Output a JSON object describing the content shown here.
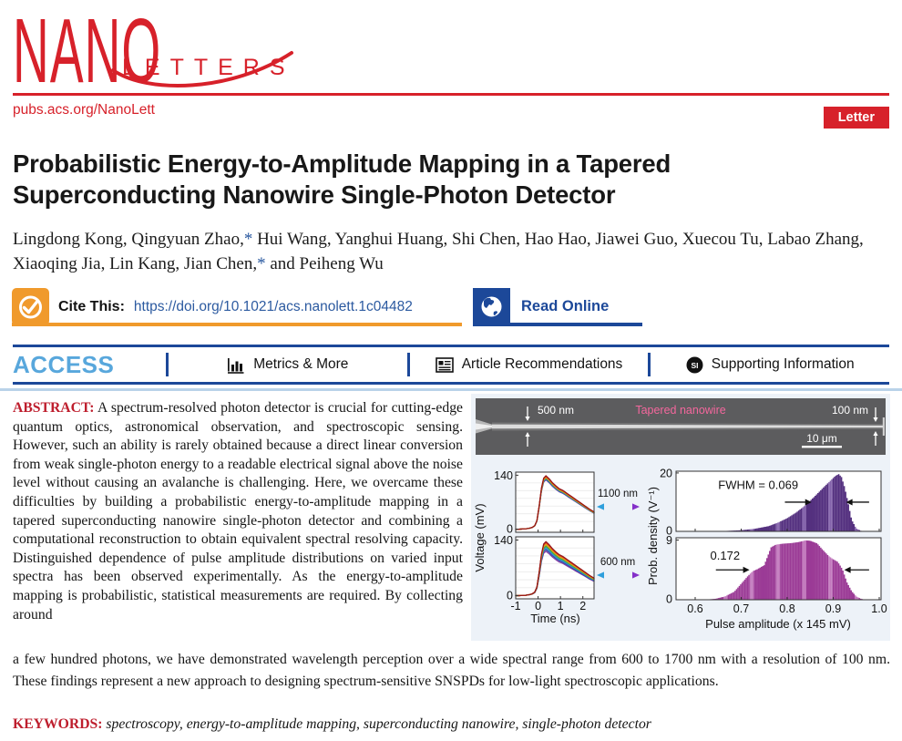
{
  "journal": {
    "logo_main": "NANO",
    "logo_sub": "LETTERS",
    "site": "pubs.acs.org/NanoLett",
    "badge": "Letter"
  },
  "article": {
    "title": "Probabilistic Energy-to-Amplitude Mapping in a Tapered Superconducting Nanowire Single-Photon Detector",
    "authors_segments": [
      {
        "t": "Lingdong Kong, Qingyuan Zhao,"
      },
      {
        "t": "*",
        "star": true
      },
      {
        "t": " Hui Wang, Yanghui Huang, Shi Chen, Hao Hao, Jiawei Guo, Xuecou Tu, Labao Zhang, Xiaoqing Jia, Lin Kang, Jian Chen,"
      },
      {
        "t": "*",
        "star": true
      },
      {
        "t": " and Peiheng Wu"
      }
    ],
    "cite_label": "Cite This:",
    "doi": "https://doi.org/10.1021/acs.nanolett.1c04482",
    "read_online": "Read Online"
  },
  "access_bar": {
    "access": "ACCESS",
    "items": [
      {
        "label": "Metrics & More"
      },
      {
        "label": "Article Recommendations"
      },
      {
        "label": "Supporting Information"
      }
    ]
  },
  "abstract": {
    "label": "ABSTRACT:",
    "column_text": "A spectrum-resolved photon detector is crucial for cutting-edge quantum optics, astronomical observation, and spectroscopic sensing. However, such an ability is rarely obtained because a direct linear conversion from weak single-photon energy to a readable electrical signal above the noise level without causing an avalanche is challenging. Here, we overcame these difficulties by building a probabilistic energy-to-amplitude mapping in a tapered superconducting nanowire single-photon detector and combining a computational reconstruction to obtain equivalent spectral resolving capacity. Distinguished dependence of pulse amplitude distributions on varied input spectra has been observed experimentally. As the energy-to-amplitude mapping is probabilistic, statistical measurements are required. By collecting around",
    "full_text": "a few hundred photons, we have demonstrated wavelength perception over a wide spectral range from 600 to 1700 nm with a resolution of 100 nm. These findings represent a new approach to designing spectrum-sensitive SNSPDs for low-light spectroscopic applications."
  },
  "keywords": {
    "label": "KEYWORDS:",
    "text": "spectroscopy, energy-to-amplitude mapping, superconducting nanowire, single-photon detector"
  },
  "figure": {
    "sem": {
      "label_left": "500 nm",
      "label_center": "Tapered nanowire",
      "label_right": "100 nm",
      "scalebar": "10 μm"
    },
    "arrow_labels": [
      "1100 nm",
      "600 nm"
    ]
  },
  "colors": {
    "brand_red": "#d7212a",
    "navy": "#1c4899",
    "access_blue": "#58a7dc",
    "orange": "#f09a2c",
    "link_blue": "#2c5aa0",
    "heading_red": "#be1e2d",
    "figure_bg": "#edf2f8",
    "sem_bg": "#5c5c5e",
    "sem_pink": "#f4679d",
    "arrow_gradient": [
      "#2f9fdc",
      "#8430c9"
    ]
  },
  "chart_data": [
    {
      "type": "line",
      "title": "Voltage pulse traces for two wavelengths",
      "xlabel": "Time (ns)",
      "ylabel": "Voltage (mV)",
      "xlim": [
        -1,
        2.5
      ],
      "ylim": [
        0,
        140
      ],
      "xticks": [
        -1,
        0,
        1,
        2
      ],
      "yticks": [
        0,
        140
      ],
      "x": [
        -1,
        -0.85,
        -0.7,
        -0.55,
        -0.45,
        -0.35,
        -0.25,
        -0.15,
        -0.05,
        0.05,
        0.15,
        0.25,
        0.35,
        0.5,
        0.65,
        0.8,
        0.95,
        1.1,
        1.2,
        1.35,
        1.5,
        1.7,
        1.9,
        2.1,
        2.3,
        2.5
      ],
      "base_mV": [
        0,
        0,
        0.5,
        1,
        2,
        3,
        5,
        9,
        22,
        60,
        105,
        130,
        136,
        128,
        118,
        110,
        103,
        99,
        95,
        89,
        83,
        75,
        67,
        59,
        51,
        44
      ],
      "panels": [
        {
          "label": "1100 nm",
          "trace_scales": [
            0.94,
            0.95,
            0.96,
            0.97,
            0.975,
            0.985,
            0.99,
            1.0,
            1.01,
            1.02
          ]
        },
        {
          "label": "600 nm",
          "trace_scales": [
            0.82,
            0.85,
            0.875,
            0.9,
            0.92,
            0.94,
            0.955,
            0.97,
            0.985,
            1.0
          ]
        }
      ],
      "trace_colors": [
        "#7b2fa0",
        "#2b3f9e",
        "#2f7fd4",
        "#29a8a0",
        "#3e9c35",
        "#b5a812",
        "#e8b01a",
        "#e87117",
        "#d42a2a",
        "#8f1414"
      ]
    },
    {
      "type": "area-histogram",
      "title": "Pulse amplitude probability densities",
      "xlabel": "Pulse amplitude (x 145 mV)",
      "ylabel": "Prob. density (V⁻¹)",
      "xlim": [
        0.555,
        1.005
      ],
      "xticks": [
        0.6,
        0.7,
        0.8,
        0.9,
        1.0
      ],
      "panels": [
        {
          "annotation": "FWHM = 0.069",
          "fwhm": 0.069,
          "ylim": [
            0,
            20
          ],
          "yticks": [
            0,
            20
          ],
          "color": "#54307f",
          "color_light": "#8463ab",
          "x": [
            0.62,
            0.66,
            0.7,
            0.73,
            0.76,
            0.78,
            0.8,
            0.82,
            0.84,
            0.86,
            0.88,
            0.895,
            0.905,
            0.912,
            0.918,
            0.925,
            0.932,
            0.94,
            0.95,
            0.96,
            0.97
          ],
          "y": [
            0,
            0.1,
            0.4,
            0.9,
            1.8,
            3.0,
            4.5,
            6.5,
            9.0,
            12.0,
            15.2,
            17.5,
            19.0,
            19.6,
            18.6,
            15.0,
            10.0,
            4.0,
            1.0,
            0.2,
            0
          ],
          "arrow_y": 10,
          "arrow_left": [
            0.795,
            0.853
          ],
          "arrow_right": [
            0.978,
            0.928
          ],
          "label_pos": [
            0.737,
            15.8
          ]
        },
        {
          "annotation": "0.172",
          "fwhm": 0.172,
          "ylim": [
            0,
            9
          ],
          "yticks": [
            0,
            9
          ],
          "color": "#9b3b96",
          "color_light": "#c279bd",
          "x": [
            0.62,
            0.645,
            0.665,
            0.685,
            0.7,
            0.715,
            0.725,
            0.735,
            0.75,
            0.765,
            0.775,
            0.79,
            0.81,
            0.825,
            0.84,
            0.85,
            0.865,
            0.875,
            0.89,
            0.9,
            0.91,
            0.92,
            0.93,
            0.94,
            0.95,
            0.96,
            0.97
          ],
          "y": [
            0,
            0.15,
            0.5,
            1.2,
            2.4,
            3.6,
            4.3,
            4.6,
            5.2,
            7.9,
            8.3,
            8.45,
            8.55,
            8.7,
            8.95,
            8.9,
            8.5,
            7.7,
            6.6,
            6.1,
            5.7,
            4.6,
            2.6,
            1.3,
            0.5,
            0.15,
            0
          ],
          "arrow_y": 4.5,
          "arrow_left": [
            0.645,
            0.718
          ],
          "arrow_right": [
            0.978,
            0.924
          ],
          "label_pos": [
            0.665,
            6.6
          ]
        }
      ]
    }
  ]
}
